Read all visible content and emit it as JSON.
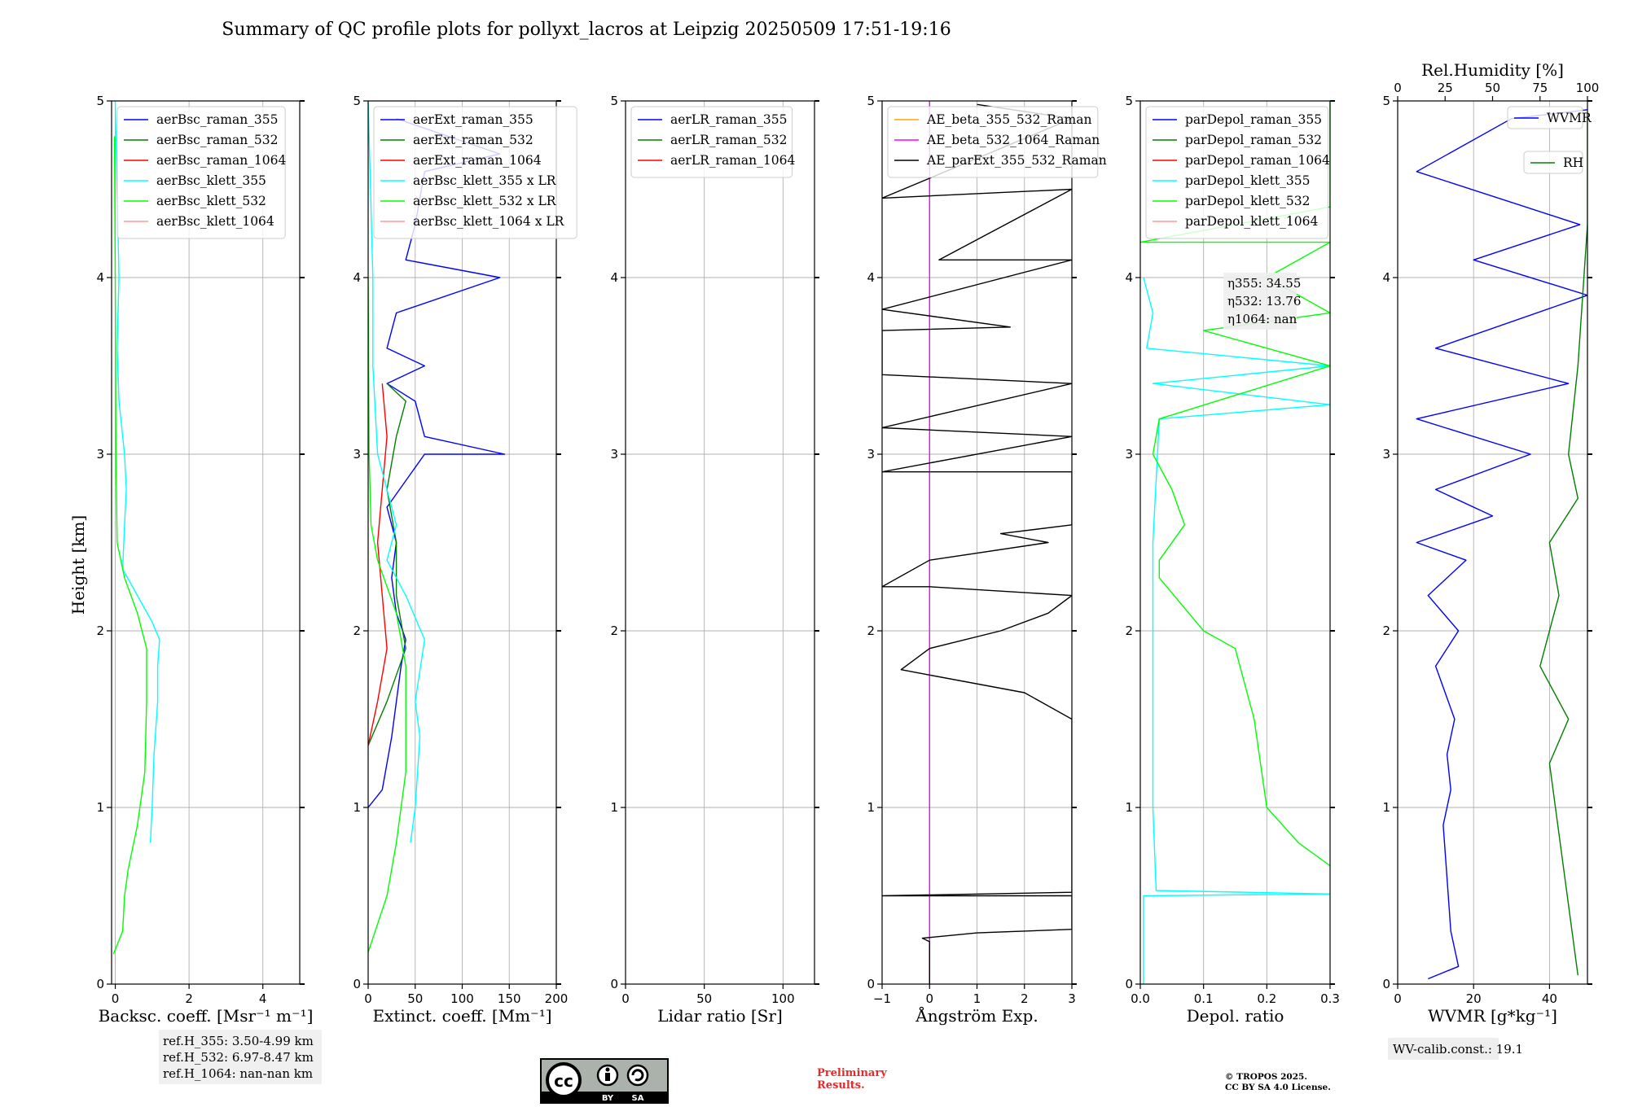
{
  "title": "Summary of QC profile plots for pollyxt_lacros at Leipzig 20250509 17:51-19:16",
  "y_label": "Height [km]",
  "y_ticks": [
    "0",
    "1",
    "2",
    "3",
    "4",
    "5"
  ],
  "ref_heights": [
    "ref.H_355: 3.50-4.99 km",
    "ref.H_532: 6.97-8.47 km",
    "ref.H_1064: nan-nan km"
  ],
  "wv_calib": "WV-calib.const.: 19.1",
  "preliminary": [
    "Preliminary",
    "Results."
  ],
  "copyright": [
    "© TROPOS 2025.",
    "CC BY SA 4.0 License."
  ],
  "license_badge": {
    "icon": "cc-by-sa-icon",
    "labels": [
      "BY",
      "SA"
    ]
  },
  "depol_annotation": [
    "η355: 34.55",
    "η532: 13.76",
    "η1064: nan"
  ],
  "colors": {
    "blue": "#0000ff",
    "green": "#008000",
    "red": "#ff0000",
    "cyan": "#00ffff",
    "lime": "#00ff00",
    "pink": "#ff9999",
    "orange": "#ffa500",
    "magenta": "#ff00ff",
    "black": "#000000"
  },
  "chart_data": [
    {
      "type": "line",
      "xlabel": "Backsc. coeff. [Msr⁻¹ m⁻¹]",
      "ylabel": "Height [km]",
      "xlim": [
        -0.1,
        5
      ],
      "ylim": [
        0,
        5
      ],
      "x_ticks": [
        0,
        2,
        4
      ],
      "legend": "top-left",
      "series": [
        {
          "name": "aerBsc_raman_355",
          "color": "blue",
          "points": []
        },
        {
          "name": "aerBsc_raman_532",
          "color": "green",
          "points": []
        },
        {
          "name": "aerBsc_raman_1064",
          "color": "red",
          "points": []
        },
        {
          "name": "aerBsc_klett_355",
          "color": "cyan",
          "points": [
            [
              0.95,
              0.8
            ],
            [
              1.0,
              1.0
            ],
            [
              1.05,
              1.3
            ],
            [
              1.15,
              1.6
            ],
            [
              1.15,
              1.8
            ],
            [
              1.2,
              1.95
            ],
            [
              1.0,
              2.05
            ],
            [
              0.6,
              2.2
            ],
            [
              0.2,
              2.35
            ],
            [
              0.25,
              2.6
            ],
            [
              0.3,
              2.8
            ],
            [
              0.25,
              3.0
            ],
            [
              0.1,
              3.3
            ],
            [
              0.05,
              3.6
            ],
            [
              0.1,
              4.0
            ],
            [
              0.05,
              4.5
            ],
            [
              0.0,
              5.0
            ]
          ]
        },
        {
          "name": "aerBsc_klett_532",
          "color": "lime",
          "points": [
            [
              -0.05,
              0.17
            ],
            [
              0.2,
              0.3
            ],
            [
              0.25,
              0.5
            ],
            [
              0.35,
              0.65
            ],
            [
              0.6,
              0.9
            ],
            [
              0.8,
              1.2
            ],
            [
              0.85,
              1.6
            ],
            [
              0.85,
              1.9
            ],
            [
              0.6,
              2.1
            ],
            [
              0.25,
              2.3
            ],
            [
              0.05,
              2.5
            ],
            [
              0.02,
              3.0
            ],
            [
              0.0,
              4.0
            ],
            [
              -0.02,
              4.8
            ]
          ]
        },
        {
          "name": "aerBsc_klett_1064",
          "color": "pink",
          "points": []
        }
      ]
    },
    {
      "type": "line",
      "xlabel": "Extinct. coeff. [Mm⁻¹]",
      "ylabel": "Height [km]",
      "xlim": [
        0,
        200
      ],
      "ylim": [
        0,
        5
      ],
      "x_ticks": [
        0,
        50,
        100,
        150,
        200
      ],
      "legend": "top-left",
      "series": [
        {
          "name": "aerExt_raman_355",
          "color": "blue",
          "points": [
            [
              0,
              1.0
            ],
            [
              15,
              1.1
            ],
            [
              25,
              1.4
            ],
            [
              35,
              1.8
            ],
            [
              40,
              1.95
            ],
            [
              30,
              2.1
            ],
            [
              25,
              2.3
            ],
            [
              30,
              2.5
            ],
            [
              20,
              2.7
            ],
            [
              60,
              3.0
            ],
            [
              145,
              3.0
            ],
            [
              60,
              3.1
            ],
            [
              50,
              3.3
            ],
            [
              20,
              3.4
            ],
            [
              60,
              3.5
            ],
            [
              20,
              3.6
            ],
            [
              30,
              3.8
            ],
            [
              140,
              4.0
            ],
            [
              40,
              4.1
            ],
            [
              50,
              4.3
            ],
            [
              60,
              4.6
            ],
            [
              140,
              4.7
            ],
            [
              30,
              4.9
            ]
          ]
        },
        {
          "name": "aerExt_raman_532",
          "color": "green",
          "points": [
            [
              0,
              1.35
            ],
            [
              20,
              1.6
            ],
            [
              40,
              1.9
            ],
            [
              30,
              2.2
            ],
            [
              30,
              2.5
            ],
            [
              20,
              2.8
            ],
            [
              30,
              3.1
            ],
            [
              40,
              3.3
            ],
            [
              20,
              3.4
            ]
          ]
        },
        {
          "name": "aerExt_raman_1064",
          "color": "red",
          "points": [
            [
              0,
              1.35
            ],
            [
              10,
              1.6
            ],
            [
              20,
              1.9
            ],
            [
              15,
              2.2
            ],
            [
              10,
              2.5
            ],
            [
              15,
              2.8
            ],
            [
              20,
              3.1
            ],
            [
              15,
              3.4
            ]
          ]
        },
        {
          "name": "aerBsc_klett_355 x LR",
          "color": "cyan",
          "points": [
            [
              45,
              0.8
            ],
            [
              50,
              1.0
            ],
            [
              55,
              1.4
            ],
            [
              50,
              1.6
            ],
            [
              60,
              1.95
            ],
            [
              40,
              2.2
            ],
            [
              20,
              2.4
            ],
            [
              30,
              2.6
            ],
            [
              20,
              2.8
            ],
            [
              10,
              3.0
            ],
            [
              5,
              3.5
            ],
            [
              5,
              4.0
            ],
            [
              0,
              5.0
            ]
          ]
        },
        {
          "name": "aerBsc_klett_532 x LR",
          "color": "lime",
          "points": [
            [
              0,
              0.18
            ],
            [
              20,
              0.5
            ],
            [
              30,
              0.8
            ],
            [
              40,
              1.2
            ],
            [
              40,
              1.8
            ],
            [
              30,
              2.1
            ],
            [
              10,
              2.4
            ],
            [
              3,
              2.6
            ],
            [
              1,
              3.0
            ],
            [
              0,
              4.0
            ]
          ]
        },
        {
          "name": "aerBsc_klett_1064 x LR",
          "color": "pink",
          "points": []
        }
      ]
    },
    {
      "type": "line",
      "xlabel": "Lidar ratio [Sr]",
      "ylabel": "Height [km]",
      "xlim": [
        0,
        120
      ],
      "ylim": [
        0,
        5
      ],
      "x_ticks": [
        0,
        50,
        100
      ],
      "legend": "top-left",
      "series": [
        {
          "name": "aerLR_raman_355",
          "color": "blue",
          "points": []
        },
        {
          "name": "aerLR_raman_532",
          "color": "green",
          "points": []
        },
        {
          "name": "aerLR_raman_1064",
          "color": "red",
          "points": []
        }
      ]
    },
    {
      "type": "line",
      "xlabel": "Ångström Exp.",
      "ylabel": "Height [km]",
      "xlim": [
        -1,
        3
      ],
      "ylim": [
        0,
        5
      ],
      "x_ticks": [
        -1,
        0,
        1,
        2,
        3
      ],
      "legend": "top-left",
      "series": [
        {
          "name": "AE_beta_355_532_Raman",
          "color": "orange",
          "points": []
        },
        {
          "name": "AE_beta_532_1064_Raman",
          "color": "magenta",
          "points": [
            [
              0,
              0
            ],
            [
              0,
              5
            ]
          ]
        },
        {
          "name": "AE_parExt_355_532_Raman",
          "color": "black",
          "points": [
            [
              0,
              0
            ],
            [
              0,
              0.24
            ],
            [
              -0.15,
              0.26
            ],
            [
              1.0,
              0.29
            ],
            [
              3,
              0.31
            ],
            [
              3,
              0.5
            ],
            [
              -1,
              0.5
            ],
            [
              3,
              0.52
            ],
            [
              3,
              1.5
            ],
            [
              2,
              1.65
            ],
            [
              0,
              1.75
            ],
            [
              -0.6,
              1.78
            ],
            [
              0,
              1.9
            ],
            [
              1.5,
              2.0
            ],
            [
              2.5,
              2.1
            ],
            [
              3,
              2.2
            ],
            [
              0,
              2.25
            ],
            [
              -1,
              2.25
            ],
            [
              0,
              2.4
            ],
            [
              2.5,
              2.5
            ],
            [
              1.5,
              2.55
            ],
            [
              3,
              2.6
            ],
            [
              3,
              2.9
            ],
            [
              -1,
              2.9
            ],
            [
              3,
              3.1
            ],
            [
              -1,
              3.15
            ],
            [
              3,
              3.4
            ],
            [
              -1,
              3.45
            ],
            [
              -1,
              3.7
            ],
            [
              1.7,
              3.72
            ],
            [
              -1,
              3.82
            ],
            [
              3,
              4.1
            ],
            [
              0.2,
              4.1
            ],
            [
              3,
              4.5
            ],
            [
              -1,
              4.45
            ],
            [
              3,
              4.9
            ],
            [
              1,
              4.98
            ]
          ]
        }
      ]
    },
    {
      "type": "line",
      "xlabel": "Depol. ratio",
      "ylabel": "Height [km]",
      "xlim": [
        0,
        0.3
      ],
      "ylim": [
        0,
        5
      ],
      "x_ticks": [
        0.0,
        0.1,
        0.2,
        0.3
      ],
      "x_tick_labels": [
        "0.0",
        "0.1",
        "0.2",
        "0.3"
      ],
      "legend": "top-left",
      "series": [
        {
          "name": "parDepol_raman_355",
          "color": "blue",
          "points": []
        },
        {
          "name": "parDepol_raman_532",
          "color": "green",
          "points": []
        },
        {
          "name": "parDepol_raman_1064",
          "color": "red",
          "points": []
        },
        {
          "name": "parDepol_klett_355",
          "color": "cyan",
          "points": [
            [
              0.005,
              0
            ],
            [
              0.005,
              0.5
            ],
            [
              0.3,
              0.51
            ],
            [
              0.025,
              0.53
            ],
            [
              0.02,
              1.0
            ],
            [
              0.02,
              2.0
            ],
            [
              0.02,
              2.5
            ],
            [
              0.03,
              3.2
            ],
            [
              0.3,
              3.28
            ],
            [
              0.02,
              3.4
            ],
            [
              0.3,
              3.5
            ],
            [
              0.01,
              3.6
            ],
            [
              0.02,
              3.8
            ],
            [
              0.005,
              4.0
            ]
          ]
        },
        {
          "name": "parDepol_klett_532",
          "color": "lime",
          "points": [
            [
              0.3,
              0.67
            ],
            [
              0.25,
              0.8
            ],
            [
              0.2,
              1.0
            ],
            [
              0.18,
              1.5
            ],
            [
              0.15,
              1.9
            ],
            [
              0.1,
              2.0
            ],
            [
              0.03,
              2.3
            ],
            [
              0.03,
              2.4
            ],
            [
              0.07,
              2.6
            ],
            [
              0.05,
              2.8
            ],
            [
              0.02,
              3.0
            ],
            [
              0.03,
              3.2
            ],
            [
              0.3,
              3.5
            ],
            [
              0.1,
              3.7
            ],
            [
              0.3,
              3.8
            ],
            [
              0.2,
              4.0
            ],
            [
              0.3,
              4.2
            ],
            [
              0.0,
              4.2
            ],
            [
              0.3,
              4.4
            ],
            [
              0.3,
              4.9
            ],
            [
              0.3,
              5.0
            ]
          ]
        },
        {
          "name": "parDepol_klett_1064",
          "color": "pink",
          "points": []
        }
      ]
    },
    {
      "type": "line",
      "xlabel": "WVMR [g*kg⁻¹]",
      "ylabel": "Height [km]",
      "xlim": [
        0,
        50
      ],
      "ylim": [
        0,
        5
      ],
      "x_ticks": [
        0,
        20,
        40
      ],
      "top_xlabel": "Rel.Humidity [%]",
      "top_xlim": [
        0,
        100
      ],
      "top_x_ticks": [
        0,
        25,
        50,
        75,
        100
      ],
      "legend": "top-right",
      "series": [
        {
          "name": "WVMR",
          "color": "blue",
          "axis": "bottom",
          "points": [
            [
              8,
              0.03
            ],
            [
              16,
              0.1
            ],
            [
              14,
              0.3
            ],
            [
              13,
              0.6
            ],
            [
              12,
              0.9
            ],
            [
              14,
              1.1
            ],
            [
              13,
              1.3
            ],
            [
              15,
              1.5
            ],
            [
              10,
              1.8
            ],
            [
              16,
              2.0
            ],
            [
              8,
              2.2
            ],
            [
              18,
              2.4
            ],
            [
              5,
              2.5
            ],
            [
              25,
              2.65
            ],
            [
              10,
              2.8
            ],
            [
              35,
              3.0
            ],
            [
              5,
              3.2
            ],
            [
              45,
              3.4
            ],
            [
              10,
              3.6
            ],
            [
              50,
              3.9
            ],
            [
              20,
              4.1
            ],
            [
              48,
              4.3
            ],
            [
              5,
              4.6
            ],
            [
              30,
              4.9
            ],
            [
              50,
              4.95
            ]
          ]
        },
        {
          "name": "RH",
          "color": "green",
          "axis": "top",
          "points": [
            [
              95,
              0.05
            ],
            [
              80,
              1.25
            ],
            [
              90,
              1.5
            ],
            [
              75,
              1.8
            ],
            [
              85,
              2.2
            ],
            [
              80,
              2.5
            ],
            [
              95,
              2.75
            ],
            [
              90,
              3.0
            ],
            [
              95,
              3.5
            ],
            [
              100,
              4.3
            ],
            [
              100,
              4.9
            ]
          ]
        }
      ]
    }
  ]
}
